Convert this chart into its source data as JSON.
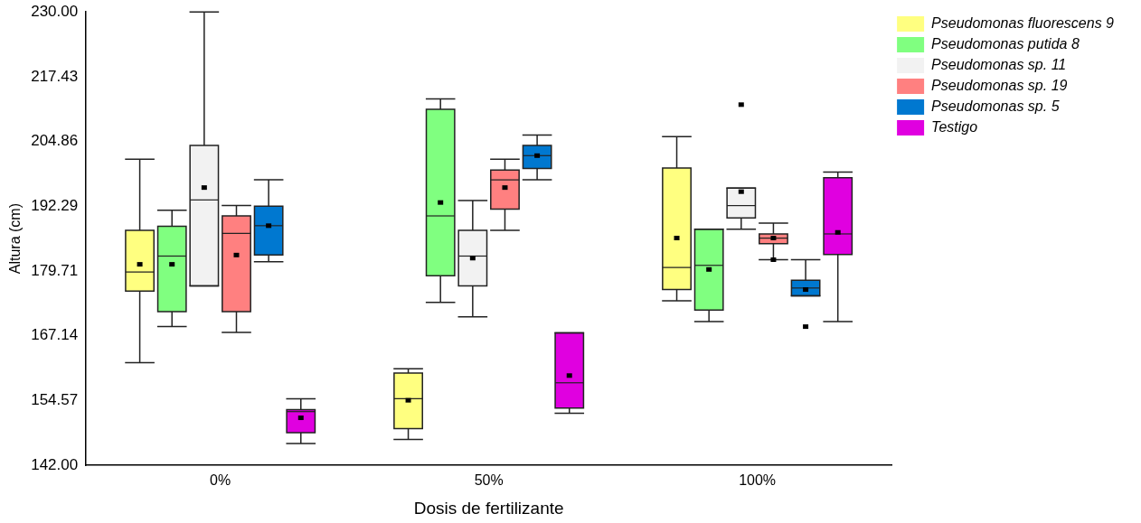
{
  "chart_data": {
    "type": "box",
    "xlabel": "Dosis de fertilizante",
    "ylabel": "Altura (cm)",
    "categories": [
      "0%",
      "50%",
      "100%"
    ],
    "ylim": [
      142,
      230
    ],
    "yticks": [
      {
        "value": 142,
        "label": "142.00"
      },
      {
        "value": 154.57,
        "label": "154.57"
      },
      {
        "value": 167.14,
        "label": "167.14"
      },
      {
        "value": 179.71,
        "label": "179.71"
      },
      {
        "value": 192.29,
        "label": "192.29"
      },
      {
        "value": 204.86,
        "label": "204.86"
      },
      {
        "value": 217.43,
        "label": "217.43"
      },
      {
        "value": 230,
        "label": "230.00"
      }
    ],
    "legend": "top right",
    "series": [
      {
        "name": "Pseudomonas fluorescens 9",
        "color": "#ffff80",
        "boxes": [
          {
            "low": 161.9,
            "q1": 175.8,
            "median": 179.5,
            "q3": 187.6,
            "high": 201.4,
            "mean": 181.0
          },
          {
            "low": 147.0,
            "q1": 149.1,
            "median": 154.9,
            "q3": 159.9,
            "high": 160.7,
            "mean": 154.6
          },
          {
            "low": 173.9,
            "q1": 176.1,
            "median": 180.4,
            "q3": 199.7,
            "high": 205.8,
            "mean": 186.1
          }
        ]
      },
      {
        "name": "Pseudomonas putida 8",
        "color": "#80ff80",
        "boxes": [
          {
            "low": 168.9,
            "q1": 171.8,
            "median": 182.6,
            "q3": 188.4,
            "high": 191.5,
            "mean": 181.0
          },
          {
            "low": 173.6,
            "q1": 178.8,
            "median": 190.4,
            "q3": 211.1,
            "high": 213.1,
            "mean": 193.0
          },
          {
            "low": 169.9,
            "q1": 172.1,
            "median": 180.8,
            "q3": 187.8,
            "high": 187.8,
            "mean": 180.0
          }
        ]
      },
      {
        "name": "Pseudomonas sp. 11",
        "color": "#f2f2f2",
        "boxes": [
          {
            "low": 176.8,
            "q1": 176.8,
            "median": 193.5,
            "q3": 204.1,
            "high": 230.0,
            "mean": 195.9
          },
          {
            "low": 170.8,
            "q1": 176.8,
            "median": 182.6,
            "q3": 187.6,
            "high": 193.4,
            "mean": 182.2
          },
          {
            "low": 187.8,
            "q1": 190.0,
            "median": 192.4,
            "q3": 195.8,
            "high": 195.8,
            "mean": 195.1,
            "outliers": [
              212.0
            ]
          }
        ]
      },
      {
        "name": "Pseudomonas sp. 19",
        "color": "#ff8080",
        "boxes": [
          {
            "low": 167.8,
            "q1": 171.8,
            "median": 187.0,
            "q3": 190.4,
            "high": 192.4,
            "mean": 182.8
          },
          {
            "low": 187.6,
            "q1": 191.7,
            "median": 197.4,
            "q3": 199.3,
            "high": 201.4,
            "mean": 195.9
          },
          {
            "low": 181.9,
            "q1": 185.0,
            "median": 186.1,
            "q3": 186.9,
            "high": 189.0,
            "mean": 186.1,
            "outliers": [
              181.9
            ]
          }
        ]
      },
      {
        "name": "Pseudomonas sp. 5",
        "color": "#0078d0",
        "boxes": [
          {
            "low": 181.5,
            "q1": 182.8,
            "median": 188.5,
            "q3": 192.3,
            "high": 197.4,
            "mean": 188.5
          },
          {
            "low": 197.4,
            "q1": 199.6,
            "median": 202.1,
            "q3": 204.1,
            "high": 206.1,
            "mean": 202.1
          },
          {
            "low": 174.9,
            "q1": 174.9,
            "median": 176.4,
            "q3": 177.9,
            "high": 181.9,
            "mean": 176.1,
            "outliers": [
              168.9
            ]
          }
        ]
      },
      {
        "name": "Testigo",
        "color": "#e000e0",
        "boxes": [
          {
            "low": 146.2,
            "q1": 148.3,
            "median": 152.4,
            "q3": 152.8,
            "high": 154.9,
            "mean": 151.2
          },
          {
            "low": 152.1,
            "q1": 153.1,
            "median": 158.0,
            "q3": 167.7,
            "high": 167.7,
            "mean": 159.4
          },
          {
            "low": 169.9,
            "q1": 182.9,
            "median": 186.9,
            "q3": 197.8,
            "high": 198.9,
            "mean": 187.2
          }
        ]
      }
    ]
  }
}
